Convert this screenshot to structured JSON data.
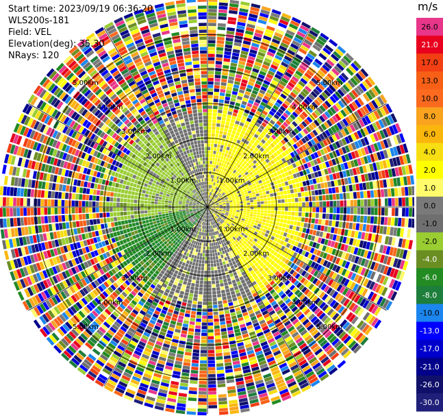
{
  "info": {
    "start_time": "Start time: 2023/09/19 06:36:20",
    "device": "WLS200s-181",
    "field": "Field: VEL",
    "elevation": "Elevation(deg): 35.30",
    "nrays": "NRays: 120"
  },
  "colorbar": {
    "title": "m/s",
    "levels": [
      {
        "label": "26.0",
        "color": "#e8368a"
      },
      {
        "label": "21.0",
        "color": "#e8001e"
      },
      {
        "label": "17.0",
        "color": "#f23f14"
      },
      {
        "label": "13.0",
        "color": "#f76016"
      },
      {
        "label": "10.0",
        "color": "#fb6a1f"
      },
      {
        "label": "8.0",
        "color": "#f9a31f"
      },
      {
        "label": "6.0",
        "color": "#fbb60e"
      },
      {
        "label": "4.0",
        "color": "#f7de13"
      },
      {
        "label": "2.0",
        "color": "#ffff00"
      },
      {
        "label": "1.0",
        "color": "#fffb6b"
      },
      {
        "label": "0.0",
        "color": "#7a7a7a"
      },
      {
        "label": "-1.0",
        "color": "#6f6f6f"
      },
      {
        "label": "-2.0",
        "color": "#9acd32"
      },
      {
        "label": "-4.0",
        "color": "#6b8e23"
      },
      {
        "label": "-6.0",
        "color": "#228b22"
      },
      {
        "label": "-8.0",
        "color": "#1e7e3c"
      },
      {
        "label": "-10.0",
        "color": "#1c86ee"
      },
      {
        "label": "-13.0",
        "color": "#0000ff"
      },
      {
        "label": "-17.0",
        "color": "#0000cd"
      },
      {
        "label": "-21.0",
        "color": "#00008b"
      },
      {
        "label": "-26.0",
        "color": "#10106a"
      },
      {
        "label": "-30.0",
        "color": "#20207a"
      }
    ]
  },
  "chart_data": {
    "type": "heatmap",
    "projection": "polar PPI",
    "field": "VEL",
    "units": "m/s",
    "nrays": 120,
    "max_range_km": 6,
    "range_rings_km": [
      "1.00km",
      "2.00km",
      "3.00km",
      "4.00km",
      "5.00km"
    ],
    "gate_km": 0.1,
    "coherent_range_km": 3.0,
    "sector_dominant_velocity_ms": [
      {
        "azimuth_deg": [
          0,
          150
        ],
        "value": 2.0
      },
      {
        "azimuth_deg": [
          150,
          215
        ],
        "value": -1.0
      },
      {
        "azimuth_deg": [
          215,
          260
        ],
        "value": -6.0
      },
      {
        "azimuth_deg": [
          260,
          330
        ],
        "value": -2.0
      },
      {
        "azimuth_deg": [
          330,
          360
        ],
        "value": -1.0
      }
    ],
    "beyond_coherent_range": "noise"
  }
}
